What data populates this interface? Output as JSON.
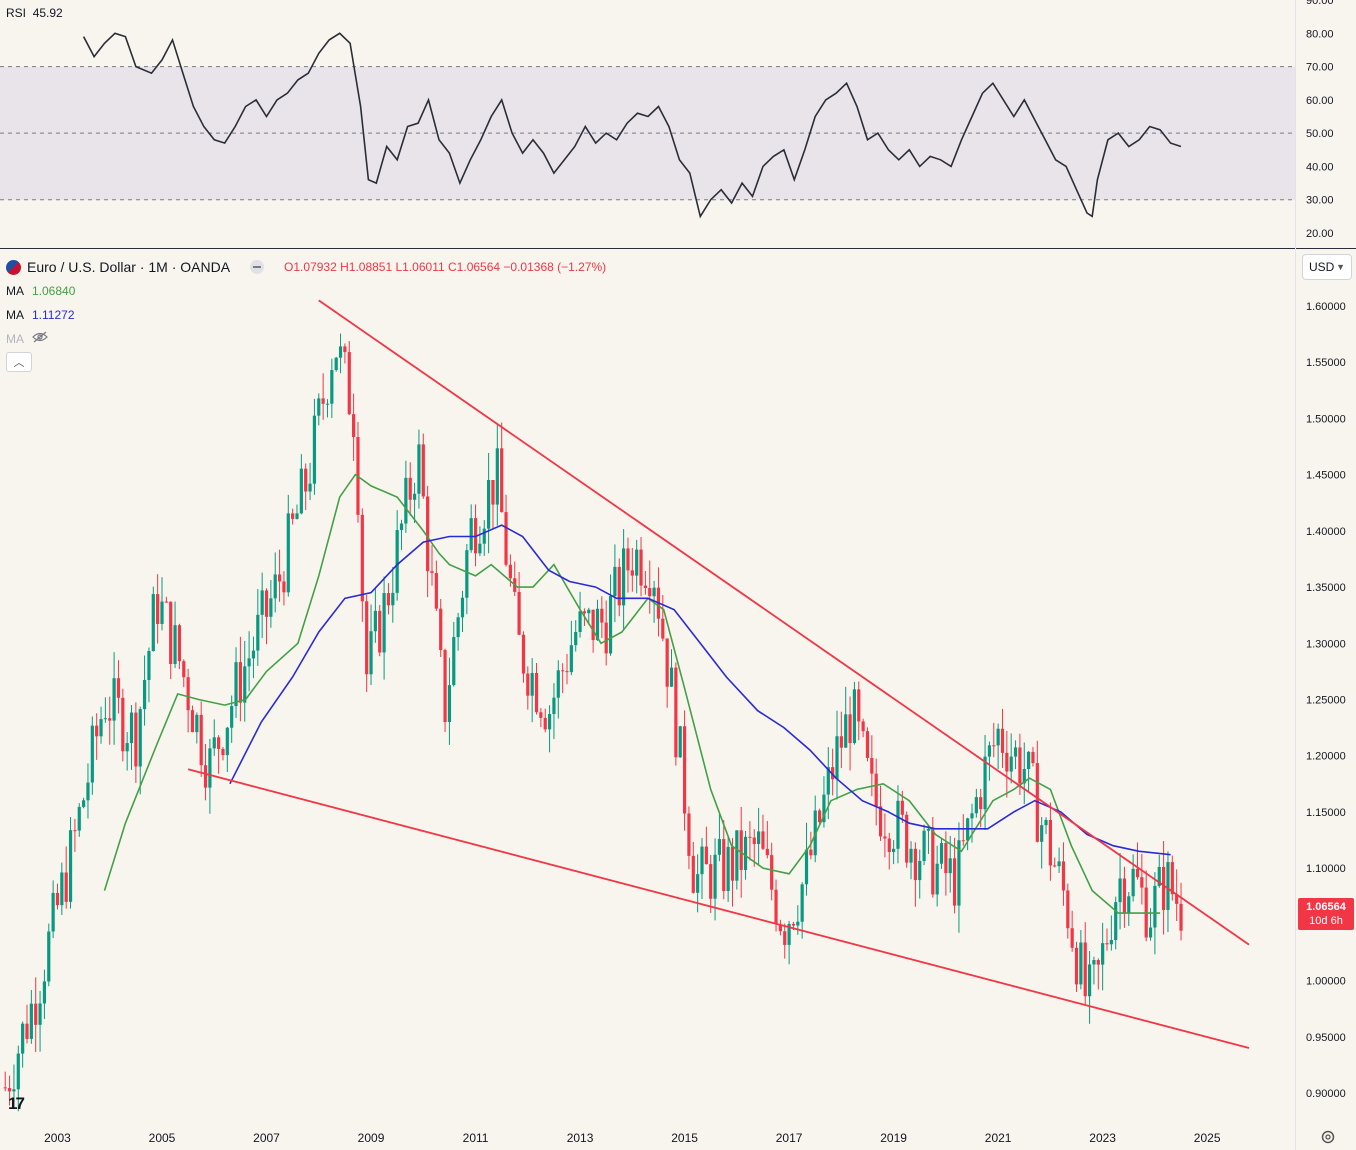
{
  "chart_data": {
    "type": "candlestick",
    "symbol": "Euro / U.S. Dollar · 1M · OANDA",
    "ohlc": {
      "o": "O1.07932",
      "h": "H1.08851",
      "l": "L1.06011",
      "c": "C1.06564",
      "change": "−0.01368 (−1.27%)"
    },
    "currency": "USD",
    "last_price": "1.06564",
    "countdown": "10d 6h",
    "price_axis_labels": [
      "1.60000",
      "1.55000",
      "1.50000",
      "1.45000",
      "1.40000",
      "1.35000",
      "1.30000",
      "1.25000",
      "1.20000",
      "1.15000",
      "1.10000",
      "1.05000",
      "1.00000",
      "0.95000",
      "0.90000"
    ],
    "price_range": [
      0.88,
      1.62
    ],
    "time_axis_labels": [
      "2003",
      "2005",
      "2007",
      "2009",
      "2011",
      "2013",
      "2015",
      "2017",
      "2019",
      "2021",
      "2023",
      "2025"
    ],
    "time_range": [
      2001.9,
      2026.7
    ],
    "grid": false,
    "ma": [
      {
        "label": "MA",
        "value": "1.06840",
        "color": "#43a047",
        "points": [
          [
            2003.9,
            1.08
          ],
          [
            2004.3,
            1.14
          ],
          [
            2004.9,
            1.21
          ],
          [
            2005.3,
            1.255
          ],
          [
            2005.7,
            1.25
          ],
          [
            2006.2,
            1.245
          ],
          [
            2006.6,
            1.25
          ],
          [
            2007.0,
            1.275
          ],
          [
            2007.6,
            1.3
          ],
          [
            2008.0,
            1.36
          ],
          [
            2008.4,
            1.43
          ],
          [
            2008.7,
            1.45
          ],
          [
            2009.0,
            1.44
          ],
          [
            2009.5,
            1.43
          ],
          [
            2010.0,
            1.4
          ],
          [
            2010.3,
            1.38
          ],
          [
            2010.5,
            1.37
          ],
          [
            2011.0,
            1.36
          ],
          [
            2011.3,
            1.37
          ],
          [
            2011.8,
            1.35
          ],
          [
            2012.1,
            1.35
          ],
          [
            2012.5,
            1.37
          ],
          [
            2013.0,
            1.33
          ],
          [
            2013.4,
            1.3
          ],
          [
            2013.8,
            1.31
          ],
          [
            2014.3,
            1.34
          ],
          [
            2014.6,
            1.33
          ],
          [
            2015.0,
            1.26
          ],
          [
            2015.5,
            1.17
          ],
          [
            2015.9,
            1.12
          ],
          [
            2016.5,
            1.1
          ],
          [
            2017.0,
            1.095
          ],
          [
            2017.4,
            1.12
          ],
          [
            2017.8,
            1.16
          ],
          [
            2018.3,
            1.17
          ],
          [
            2018.8,
            1.175
          ],
          [
            2019.3,
            1.16
          ],
          [
            2019.8,
            1.13
          ],
          [
            2020.3,
            1.115
          ],
          [
            2020.9,
            1.16
          ],
          [
            2021.3,
            1.17
          ],
          [
            2021.6,
            1.18
          ],
          [
            2022.0,
            1.17
          ],
          [
            2022.4,
            1.12
          ],
          [
            2022.8,
            1.08
          ],
          [
            2023.3,
            1.06
          ],
          [
            2023.7,
            1.06
          ],
          [
            2024.1,
            1.06
          ]
        ]
      },
      {
        "label": "MA",
        "value": "1.11272",
        "color": "#2a2ad6",
        "points": [
          [
            2006.3,
            1.175
          ],
          [
            2006.9,
            1.23
          ],
          [
            2007.5,
            1.27
          ],
          [
            2008.0,
            1.31
          ],
          [
            2008.5,
            1.34
          ],
          [
            2009.0,
            1.345
          ],
          [
            2009.5,
            1.37
          ],
          [
            2010.0,
            1.39
          ],
          [
            2010.5,
            1.395
          ],
          [
            2011.0,
            1.395
          ],
          [
            2011.5,
            1.405
          ],
          [
            2011.9,
            1.395
          ],
          [
            2012.4,
            1.365
          ],
          [
            2012.8,
            1.355
          ],
          [
            2013.3,
            1.35
          ],
          [
            2013.7,
            1.34
          ],
          [
            2014.3,
            1.34
          ],
          [
            2014.8,
            1.33
          ],
          [
            2015.3,
            1.3
          ],
          [
            2015.8,
            1.27
          ],
          [
            2016.4,
            1.24
          ],
          [
            2016.9,
            1.225
          ],
          [
            2017.4,
            1.205
          ],
          [
            2017.9,
            1.18
          ],
          [
            2018.4,
            1.16
          ],
          [
            2018.9,
            1.15
          ],
          [
            2019.3,
            1.14
          ],
          [
            2019.8,
            1.135
          ],
          [
            2020.3,
            1.135
          ],
          [
            2020.8,
            1.135
          ],
          [
            2021.3,
            1.15
          ],
          [
            2021.7,
            1.16
          ],
          [
            2022.2,
            1.15
          ],
          [
            2022.7,
            1.13
          ],
          [
            2023.2,
            1.12
          ],
          [
            2023.7,
            1.115
          ],
          [
            2024.3,
            1.112
          ]
        ]
      },
      {
        "label": "MA",
        "value": ""
      }
    ],
    "trendlines": [
      {
        "color": "#f23645",
        "from": [
          2008.0,
          1.605
        ],
        "to": [
          2025.8,
          1.032
        ]
      },
      {
        "color": "#f23645",
        "from": [
          2005.5,
          1.188
        ],
        "to": [
          2025.8,
          0.94
        ]
      }
    ],
    "rsi": {
      "label": "RSI",
      "value": "45.92",
      "axis_labels": [
        "90.00",
        "80.00",
        "70.00",
        "60.00",
        "50.00",
        "40.00",
        "30.00",
        "20.00"
      ],
      "range": [
        15,
        90
      ],
      "band": [
        30,
        70
      ],
      "values": [
        [
          2003.5,
          79
        ],
        [
          2003.7,
          73
        ],
        [
          2003.9,
          77
        ],
        [
          2004.1,
          80
        ],
        [
          2004.3,
          79
        ],
        [
          2004.5,
          70
        ],
        [
          2004.8,
          68
        ],
        [
          2005.0,
          72
        ],
        [
          2005.2,
          78
        ],
        [
          2005.4,
          68
        ],
        [
          2005.6,
          58
        ],
        [
          2005.8,
          52
        ],
        [
          2006.0,
          48
        ],
        [
          2006.2,
          47
        ],
        [
          2006.4,
          52
        ],
        [
          2006.6,
          58
        ],
        [
          2006.8,
          60
        ],
        [
          2007.0,
          55
        ],
        [
          2007.2,
          60
        ],
        [
          2007.4,
          62
        ],
        [
          2007.6,
          66
        ],
        [
          2007.8,
          68
        ],
        [
          2008.0,
          74
        ],
        [
          2008.2,
          78
        ],
        [
          2008.4,
          80
        ],
        [
          2008.6,
          77
        ],
        [
          2008.8,
          58
        ],
        [
          2008.95,
          36
        ],
        [
          2009.1,
          35
        ],
        [
          2009.3,
          46
        ],
        [
          2009.5,
          42
        ],
        [
          2009.7,
          52
        ],
        [
          2009.9,
          53
        ],
        [
          2010.1,
          60
        ],
        [
          2010.3,
          48
        ],
        [
          2010.5,
          44
        ],
        [
          2010.7,
          35
        ],
        [
          2010.9,
          42
        ],
        [
          2011.1,
          48
        ],
        [
          2011.3,
          55
        ],
        [
          2011.5,
          60
        ],
        [
          2011.7,
          50
        ],
        [
          2011.9,
          44
        ],
        [
          2012.1,
          48
        ],
        [
          2012.3,
          44
        ],
        [
          2012.5,
          38
        ],
        [
          2012.7,
          42
        ],
        [
          2012.9,
          46
        ],
        [
          2013.1,
          52
        ],
        [
          2013.3,
          47
        ],
        [
          2013.5,
          50
        ],
        [
          2013.7,
          48
        ],
        [
          2013.9,
          53
        ],
        [
          2014.1,
          56
        ],
        [
          2014.3,
          55
        ],
        [
          2014.5,
          58
        ],
        [
          2014.7,
          52
        ],
        [
          2014.9,
          42
        ],
        [
          2015.1,
          38
        ],
        [
          2015.3,
          25
        ],
        [
          2015.5,
          30
        ],
        [
          2015.7,
          33
        ],
        [
          2015.9,
          29
        ],
        [
          2016.1,
          35
        ],
        [
          2016.3,
          31
        ],
        [
          2016.5,
          40
        ],
        [
          2016.7,
          43
        ],
        [
          2016.9,
          45
        ],
        [
          2017.1,
          36
        ],
        [
          2017.3,
          45
        ],
        [
          2017.5,
          55
        ],
        [
          2017.7,
          60
        ],
        [
          2017.9,
          62
        ],
        [
          2018.1,
          65
        ],
        [
          2018.3,
          58
        ],
        [
          2018.5,
          48
        ],
        [
          2018.7,
          50
        ],
        [
          2018.9,
          45
        ],
        [
          2019.1,
          42
        ],
        [
          2019.3,
          45
        ],
        [
          2019.5,
          40
        ],
        [
          2019.7,
          43
        ],
        [
          2019.9,
          42
        ],
        [
          2020.1,
          40
        ],
        [
          2020.3,
          48
        ],
        [
          2020.5,
          55
        ],
        [
          2020.7,
          62
        ],
        [
          2020.9,
          65
        ],
        [
          2021.1,
          60
        ],
        [
          2021.3,
          55
        ],
        [
          2021.5,
          60
        ],
        [
          2021.7,
          54
        ],
        [
          2021.9,
          48
        ],
        [
          2022.1,
          42
        ],
        [
          2022.3,
          40
        ],
        [
          2022.5,
          33
        ],
        [
          2022.7,
          26
        ],
        [
          2022.8,
          25
        ],
        [
          2022.9,
          36
        ],
        [
          2023.1,
          48
        ],
        [
          2023.3,
          50
        ],
        [
          2023.5,
          46
        ],
        [
          2023.7,
          48
        ],
        [
          2023.9,
          52
        ],
        [
          2024.1,
          51
        ],
        [
          2024.3,
          47
        ],
        [
          2024.5,
          46
        ]
      ]
    }
  }
}
